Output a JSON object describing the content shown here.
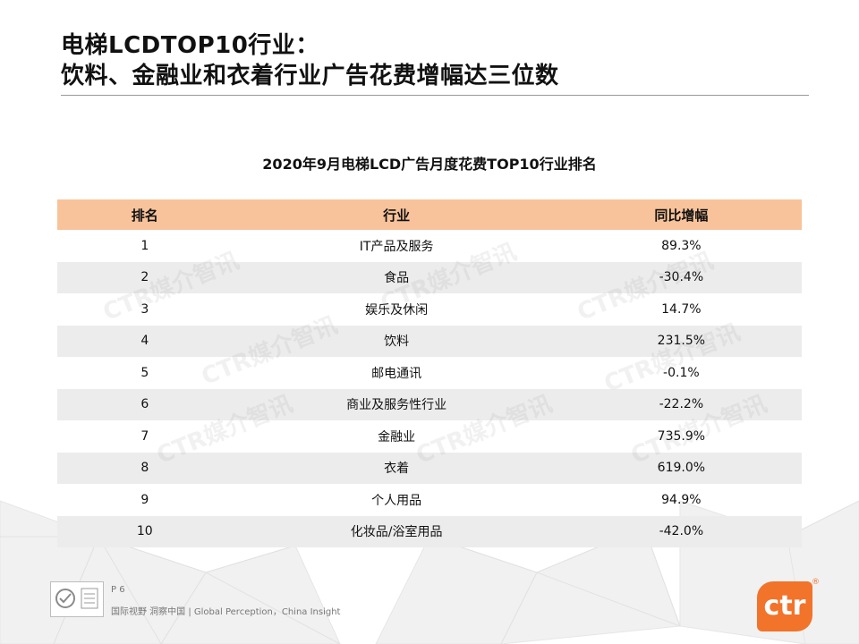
{
  "title_line1": "电梯LCDTOP10行业：",
  "title_line2": "饮料、金融业和衣着行业广告花费增幅达三位数",
  "table_title": "2020年9月电梯LCD广告月度花费TOP10行业排名",
  "headers": {
    "rank": "排名",
    "industry": "行业",
    "growth": "同比增幅"
  },
  "rows": [
    {
      "rank": "1",
      "industry": "IT产品及服务",
      "growth": "89.3%"
    },
    {
      "rank": "2",
      "industry": "食品",
      "growth": "-30.4%"
    },
    {
      "rank": "3",
      "industry": "娱乐及休闲",
      "growth": "14.7%"
    },
    {
      "rank": "4",
      "industry": "饮料",
      "growth": "231.5%"
    },
    {
      "rank": "5",
      "industry": "邮电通讯",
      "growth": "-0.1%"
    },
    {
      "rank": "6",
      "industry": "商业及服务性行业",
      "growth": "-22.2%"
    },
    {
      "rank": "7",
      "industry": "金融业",
      "growth": "735.9%"
    },
    {
      "rank": "8",
      "industry": "衣着",
      "growth": "619.0%"
    },
    {
      "rank": "9",
      "industry": "个人用品",
      "growth": "94.9%"
    },
    {
      "rank": "10",
      "industry": "化妆品/浴室用品",
      "growth": "-42.0%"
    }
  ],
  "watermark_text": "CTR媒介智讯",
  "footer": {
    "page": "P 6",
    "tagline": "国际视野 洞察中国 | Global Perception，China Insight"
  },
  "logo": {
    "text": "ctr",
    "reg": "®",
    "color": "#f2732a"
  },
  "colors": {
    "header_bg": "#f8c39a",
    "stripe": "#ececec"
  }
}
